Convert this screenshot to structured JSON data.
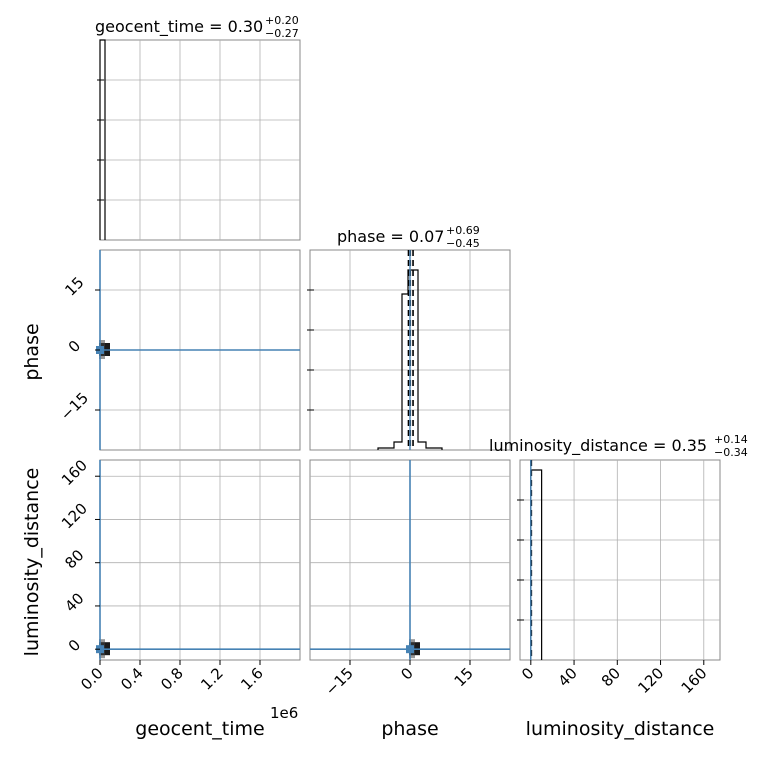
{
  "chart_data": {
    "type": "corner",
    "parameters": [
      "geocent_time",
      "phase",
      "luminosity_distance"
    ],
    "colors": {
      "truth": "#4682b4",
      "hist": "#000000",
      "grid": "#b0b0b0"
    },
    "titles": {
      "geocent_time": {
        "prefix": "geocent_time = 0.30",
        "sup": "+0.20",
        "sub": "−0.27"
      },
      "phase": {
        "prefix": "phase = 0.07",
        "sup": "+0.69",
        "sub": "−0.45"
      },
      "luminosity_distance": {
        "prefix": "luminosity_distance = 0.35",
        "sup": "+0.14",
        "sub": "−0.34"
      }
    },
    "axes": {
      "geocent_time": {
        "range": [
          0,
          2000000
        ],
        "ticks": [
          0,
          400000,
          800000,
          1200000,
          1600000
        ],
        "tick_labels": [
          "0.0",
          "0.4",
          "0.8",
          "1.2",
          "1.6"
        ],
        "offset_label": "1e6",
        "xlabel": "geocent_time"
      },
      "phase": {
        "range": [
          -25,
          25
        ],
        "ticks": [
          -15,
          0,
          15
        ],
        "tick_labels": [
          "−15",
          "0",
          "15"
        ],
        "xlabel": "phase",
        "ylabel": "phase"
      },
      "luminosity_distance": {
        "range": [
          -10,
          175
        ],
        "ticks": [
          0,
          40,
          80,
          120,
          160
        ],
        "tick_labels": [
          "0",
          "40",
          "80",
          "120",
          "160"
        ],
        "xlabel": "luminosity_distance",
        "ylabel": "luminosity_distance"
      }
    },
    "hist_geocent_time": {
      "edges": [
        0,
        50000
      ],
      "counts": [
        1.0
      ]
    },
    "hist_phase": {
      "edges": [
        -8,
        -4,
        -2,
        -0.5,
        0,
        0.5,
        2,
        4,
        8
      ],
      "counts": [
        0.01,
        0.04,
        0.78,
        0.9,
        0.9,
        0.9,
        0.04,
        0.01
      ],
      "quantile_lines": [
        -0.38,
        0.07,
        0.76
      ]
    },
    "hist_luminosity_distance": {
      "edges": [
        0,
        10
      ],
      "counts": [
        0.95
      ],
      "quantile_lines": [
        0.01,
        0.35,
        0.49
      ]
    },
    "truths": {
      "geocent_time": 0,
      "phase": 0,
      "luminosity_distance": 0
    }
  }
}
